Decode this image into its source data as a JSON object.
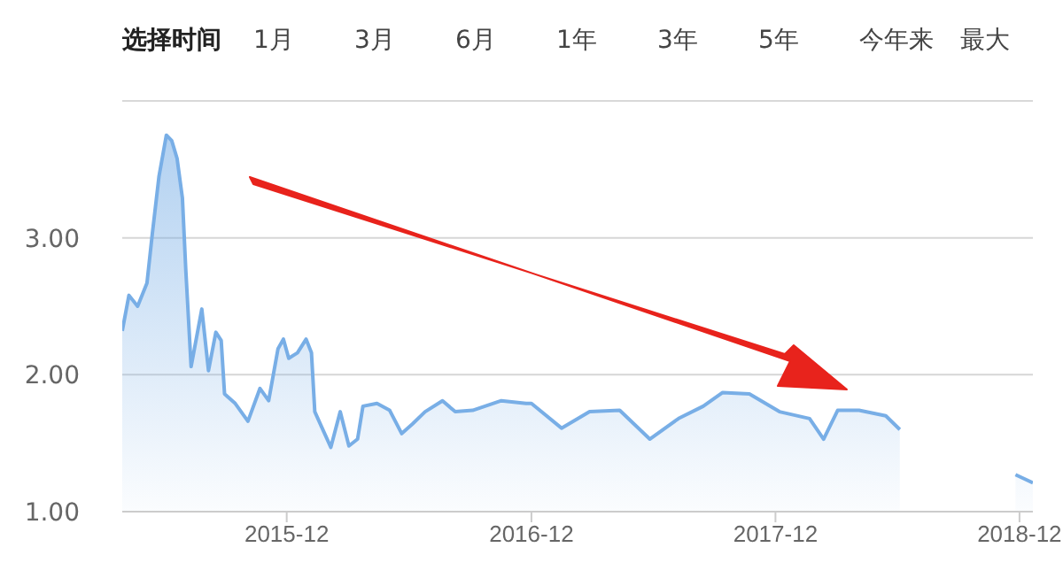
{
  "chart_data": {
    "type": "area",
    "annotations": [
      "选择时间",
      "1月",
      "3月",
      "6月",
      "1年",
      "3年",
      "5年",
      "今年来",
      "最大"
    ],
    "x": [
      "2015-03-30",
      "2015-04-09",
      "2015-04-22",
      "2015-05-06",
      "2015-05-14",
      "2015-05-24",
      "2015-06-04",
      "2015-06-12",
      "2015-06-20",
      "2015-06-28",
      "2015-07-03",
      "2015-07-11",
      "2015-07-16",
      "2015-07-27",
      "2015-08-06",
      "2015-08-17",
      "2015-08-25",
      "2015-08-30",
      "2015-09-15",
      "2015-10-04",
      "2015-10-22",
      "2015-11-04",
      "2015-11-18",
      "2015-11-26",
      "2015-12-04",
      "2015-12-17",
      "2015-12-30",
      "2016-01-07",
      "2016-01-12",
      "2016-01-23",
      "2016-02-05",
      "2016-02-19",
      "2016-03-03",
      "2016-03-16",
      "2016-03-24",
      "2016-04-14",
      "2016-05-03",
      "2016-05-21",
      "2016-06-06",
      "2016-06-25",
      "2016-07-21",
      "2016-08-09",
      "2016-09-04",
      "2016-10-17",
      "2016-11-23",
      "2016-12-01",
      "2017-01-15",
      "2017-02-26",
      "2017-04-12",
      "2017-05-27",
      "2017-07-09",
      "2017-08-15",
      "2017-09-13",
      "2017-10-23",
      "2017-12-07",
      "2018-01-21",
      "2018-02-11",
      "2018-03-04",
      "2018-04-05",
      "2018-05-15",
      "2018-06-05",
      "2018-08-29",
      "2018-11-25",
      "2018-12-21"
    ],
    "series": [
      {
        "color": "#78aee6",
        "values": [
          2.32,
          2.58,
          2.5,
          2.67,
          3.03,
          3.45,
          3.75,
          3.71,
          3.58,
          3.29,
          2.77,
          2.06,
          2.19,
          2.48,
          2.03,
          2.31,
          2.25,
          1.86,
          1.79,
          1.66,
          1.9,
          1.81,
          2.19,
          2.26,
          2.12,
          2.16,
          2.26,
          2.16,
          1.73,
          1.61,
          1.47,
          1.73,
          1.48,
          1.53,
          1.77,
          1.79,
          1.74,
          1.57,
          1.64,
          1.73,
          1.81,
          1.73,
          1.74,
          1.81,
          1.79,
          1.79,
          1.61,
          1.73,
          1.74,
          1.53,
          1.68,
          1.77,
          1.87,
          1.86,
          1.73,
          1.68,
          1.53,
          1.74,
          1.74,
          1.7,
          1.6,
          null,
          1.27,
          1.21
        ]
      }
    ],
    "xlim": [
      "2015-03-30",
      "2018-12-21"
    ],
    "xticks": [
      "2015-12",
      "2016-12",
      "2017-12",
      "2018-12"
    ],
    "ylim": [
      1,
      4
    ],
    "yticks": [
      {
        "value": 1,
        "label": "1.00"
      },
      {
        "value": 2,
        "label": "2.00"
      },
      {
        "value": 3,
        "label": "3.00"
      }
    ],
    "grid": "y",
    "legend": false
  }
}
